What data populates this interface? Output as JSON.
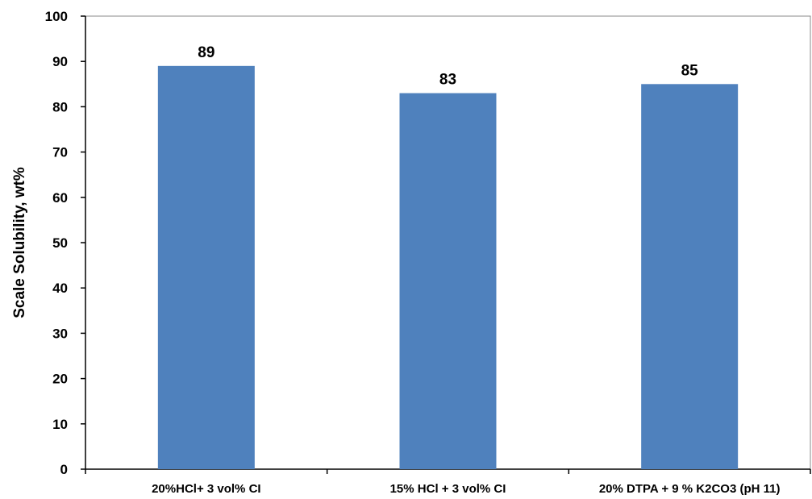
{
  "chart_data": {
    "type": "bar",
    "title": "",
    "xlabel": "",
    "ylabel": "Scale Solubility, wt%",
    "categories": [
      "20%HCl+ 3 vol% CI",
      "15% HCl + 3 vol% CI",
      "20% DTPA + 9 % K2CO3 (pH 11)"
    ],
    "values": [
      89,
      83,
      85
    ],
    "data_labels": [
      "89",
      "83",
      "85"
    ],
    "ylim": [
      0,
      100
    ],
    "yticks": [
      0,
      10,
      20,
      30,
      40,
      50,
      60,
      70,
      80,
      90,
      100
    ],
    "grid": false,
    "legend": "none",
    "colors": {
      "bar": "#4f81bd",
      "axis": "#000000"
    }
  }
}
